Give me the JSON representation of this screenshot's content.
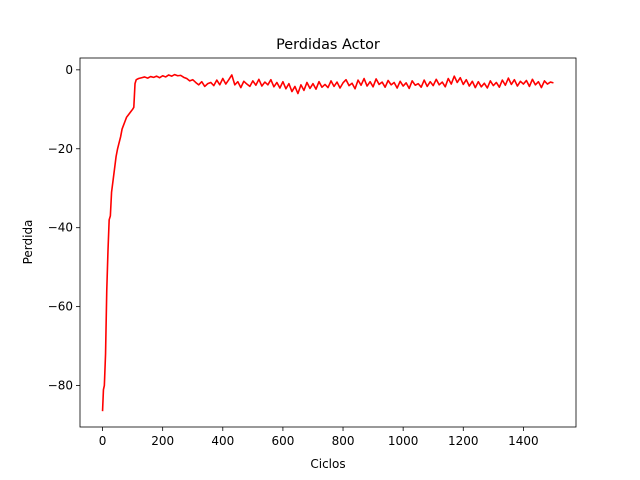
{
  "chart_data": {
    "type": "line",
    "title": "Perdidas Actor",
    "xlabel": "Ciclos",
    "ylabel": "Perdida",
    "xlim": [
      -75,
      1575
    ],
    "ylim": [
      -90.5,
      3
    ],
    "xticks": [
      0,
      200,
      400,
      600,
      800,
      1000,
      1200,
      1400
    ],
    "yticks": [
      0,
      -20,
      -40,
      -60,
      -80
    ],
    "grid": false,
    "legend": "none",
    "series": [
      {
        "color": "#ff0000",
        "points": [
          [
            0,
            -86.5
          ],
          [
            3,
            -81
          ],
          [
            6,
            -80
          ],
          [
            10,
            -72
          ],
          [
            14,
            -56
          ],
          [
            18,
            -46
          ],
          [
            22,
            -38
          ],
          [
            26,
            -37
          ],
          [
            30,
            -31
          ],
          [
            35,
            -28
          ],
          [
            40,
            -25
          ],
          [
            45,
            -22
          ],
          [
            50,
            -20
          ],
          [
            55,
            -18.5
          ],
          [
            60,
            -17
          ],
          [
            65,
            -15
          ],
          [
            70,
            -14
          ],
          [
            75,
            -13
          ],
          [
            80,
            -12
          ],
          [
            85,
            -11.5
          ],
          [
            90,
            -11
          ],
          [
            95,
            -10.5
          ],
          [
            100,
            -10
          ],
          [
            104,
            -9.5
          ],
          [
            108,
            -3.5
          ],
          [
            112,
            -2.5
          ],
          [
            120,
            -2.2
          ],
          [
            130,
            -2.0
          ],
          [
            140,
            -1.8
          ],
          [
            150,
            -2.1
          ],
          [
            160,
            -1.7
          ],
          [
            170,
            -1.9
          ],
          [
            180,
            -1.6
          ],
          [
            190,
            -2.0
          ],
          [
            200,
            -1.5
          ],
          [
            210,
            -1.8
          ],
          [
            220,
            -1.3
          ],
          [
            230,
            -1.6
          ],
          [
            240,
            -1.2
          ],
          [
            250,
            -1.5
          ],
          [
            260,
            -1.4
          ],
          [
            270,
            -1.9
          ],
          [
            280,
            -2.2
          ],
          [
            290,
            -2.8
          ],
          [
            300,
            -2.5
          ],
          [
            310,
            -3.2
          ],
          [
            320,
            -3.8
          ],
          [
            330,
            -3.0
          ],
          [
            340,
            -4.2
          ],
          [
            350,
            -3.5
          ],
          [
            360,
            -3.2
          ],
          [
            370,
            -4.0
          ],
          [
            380,
            -2.6
          ],
          [
            390,
            -3.8
          ],
          [
            400,
            -2.2
          ],
          [
            410,
            -3.6
          ],
          [
            420,
            -2.5
          ],
          [
            430,
            -1.3
          ],
          [
            440,
            -3.8
          ],
          [
            450,
            -3.0
          ],
          [
            460,
            -4.5
          ],
          [
            470,
            -2.9
          ],
          [
            480,
            -3.6
          ],
          [
            490,
            -4.2
          ],
          [
            500,
            -2.8
          ],
          [
            510,
            -3.9
          ],
          [
            520,
            -2.4
          ],
          [
            530,
            -4.1
          ],
          [
            540,
            -3.1
          ],
          [
            550,
            -3.8
          ],
          [
            560,
            -2.5
          ],
          [
            570,
            -4.3
          ],
          [
            580,
            -3.2
          ],
          [
            590,
            -4.6
          ],
          [
            600,
            -3.0
          ],
          [
            610,
            -4.8
          ],
          [
            620,
            -3.5
          ],
          [
            630,
            -5.5
          ],
          [
            640,
            -4.2
          ],
          [
            650,
            -6.0
          ],
          [
            660,
            -3.8
          ],
          [
            670,
            -5.2
          ],
          [
            680,
            -3.2
          ],
          [
            690,
            -4.7
          ],
          [
            700,
            -3.5
          ],
          [
            710,
            -4.9
          ],
          [
            720,
            -3.0
          ],
          [
            730,
            -4.4
          ],
          [
            740,
            -3.7
          ],
          [
            750,
            -4.5
          ],
          [
            760,
            -2.8
          ],
          [
            770,
            -4.2
          ],
          [
            780,
            -3.1
          ],
          [
            790,
            -4.6
          ],
          [
            800,
            -3.3
          ],
          [
            810,
            -2.5
          ],
          [
            820,
            -4.0
          ],
          [
            830,
            -3.4
          ],
          [
            840,
            -4.8
          ],
          [
            850,
            -2.6
          ],
          [
            860,
            -3.9
          ],
          [
            870,
            -2.2
          ],
          [
            880,
            -4.1
          ],
          [
            890,
            -3.0
          ],
          [
            900,
            -4.3
          ],
          [
            910,
            -2.3
          ],
          [
            920,
            -3.7
          ],
          [
            930,
            -3.1
          ],
          [
            940,
            -4.4
          ],
          [
            950,
            -2.7
          ],
          [
            960,
            -3.8
          ],
          [
            970,
            -3.2
          ],
          [
            980,
            -4.6
          ],
          [
            990,
            -2.9
          ],
          [
            1000,
            -4.1
          ],
          [
            1010,
            -3.3
          ],
          [
            1020,
            -4.7
          ],
          [
            1030,
            -2.8
          ],
          [
            1040,
            -3.9
          ],
          [
            1050,
            -3.5
          ],
          [
            1060,
            -4.4
          ],
          [
            1070,
            -2.6
          ],
          [
            1080,
            -4.2
          ],
          [
            1090,
            -3.0
          ],
          [
            1100,
            -4.0
          ],
          [
            1110,
            -2.4
          ],
          [
            1120,
            -3.8
          ],
          [
            1130,
            -3.1
          ],
          [
            1140,
            -4.3
          ],
          [
            1150,
            -2.2
          ],
          [
            1160,
            -3.6
          ],
          [
            1170,
            -1.6
          ],
          [
            1180,
            -3.2
          ],
          [
            1190,
            -2.0
          ],
          [
            1200,
            -3.7
          ],
          [
            1210,
            -2.5
          ],
          [
            1220,
            -4.1
          ],
          [
            1230,
            -2.9
          ],
          [
            1240,
            -4.5
          ],
          [
            1250,
            -3.0
          ],
          [
            1260,
            -4.3
          ],
          [
            1270,
            -3.4
          ],
          [
            1280,
            -4.6
          ],
          [
            1290,
            -2.8
          ],
          [
            1300,
            -4.0
          ],
          [
            1310,
            -3.2
          ],
          [
            1320,
            -4.4
          ],
          [
            1330,
            -2.6
          ],
          [
            1340,
            -3.9
          ],
          [
            1350,
            -2.1
          ],
          [
            1360,
            -3.7
          ],
          [
            1370,
            -2.5
          ],
          [
            1380,
            -4.1
          ],
          [
            1390,
            -2.9
          ],
          [
            1400,
            -3.6
          ],
          [
            1410,
            -2.7
          ],
          [
            1420,
            -4.2
          ],
          [
            1430,
            -2.4
          ],
          [
            1440,
            -3.8
          ],
          [
            1450,
            -3.0
          ],
          [
            1460,
            -4.5
          ],
          [
            1470,
            -2.8
          ],
          [
            1480,
            -3.6
          ],
          [
            1490,
            -3.1
          ],
          [
            1500,
            -3.3
          ]
        ]
      }
    ]
  }
}
